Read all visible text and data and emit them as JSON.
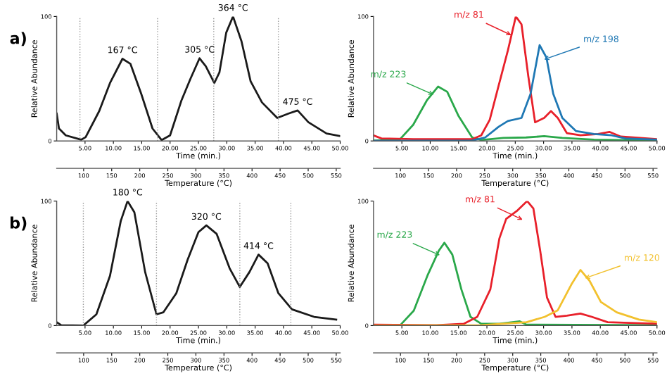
{
  "chart_data": [
    {
      "type": "line",
      "title": "a)",
      "xlabel": "Time (min.)",
      "ylabel": "Relative Abundance",
      "x2label": "Temperature (°C)",
      "xlim": [
        0,
        50
      ],
      "xticks": [
        {
          "value": 5,
          "label": "5.00"
        },
        {
          "value": 10,
          "label": "10.00"
        },
        {
          "value": 15,
          "label": "15.00"
        },
        {
          "value": 20,
          "label": "20.00"
        },
        {
          "value": 25,
          "label": "25.00"
        },
        {
          "value": 30,
          "label": "30.00"
        },
        {
          "value": 35,
          "label": "35.00"
        },
        {
          "value": 40,
          "label": "40.00"
        },
        {
          "value": 45,
          "label": "45.00"
        },
        {
          "value": 50,
          "label": "50.00"
        }
      ],
      "ylim": [
        0,
        100
      ],
      "yticks": [
        0,
        100
      ],
      "x2lim": [
        52,
        557
      ],
      "x2ticks": [
        100,
        150,
        200,
        250,
        300,
        350,
        400,
        450,
        500,
        550
      ],
      "series": [
        {
          "color": "#1a1a1a",
          "x": [
            0,
            0.4,
            1.6,
            4.3,
            5.1,
            7.5,
            9.4,
            11.6,
            13.0,
            14.9,
            16.9,
            18.5,
            20.0,
            22.0,
            23.6,
            25.2,
            26.3,
            27.8,
            28.7,
            29.9,
            31.1,
            32.6,
            34.2,
            36.2,
            38.9,
            40.9,
            42.5,
            44.4,
            47.6,
            49.9
          ],
          "values": [
            22,
            10,
            4.5,
            1,
            3,
            24,
            46.5,
            66,
            62,
            38,
            10,
            0.7,
            4.5,
            32.5,
            50,
            66.4,
            60,
            46.5,
            55,
            87,
            100,
            80,
            48,
            31,
            18.5,
            22,
            24.5,
            15,
            6,
            4
          ]
        }
      ],
      "ref_lines": [
        {
          "axis": "x",
          "value": 4.1,
          "color": "#999999",
          "line_style": "dotted"
        },
        {
          "axis": "x",
          "value": 17.8,
          "color": "#999999",
          "line_style": "dotted"
        },
        {
          "axis": "x",
          "value": 27.7,
          "color": "#999999",
          "line_style": "dotted"
        },
        {
          "axis": "x",
          "value": 39.1,
          "color": "#999999",
          "line_style": "dotted"
        }
      ],
      "annotations": [
        {
          "text": "167 °C",
          "x": 11.6,
          "y": 66
        },
        {
          "text": "305 °C",
          "x": 25.2,
          "y": 66.4
        },
        {
          "text": "364 °C",
          "x": 31.1,
          "y": 100
        },
        {
          "text": "475 °C",
          "x": 42.5,
          "y": 24.5
        }
      ],
      "grid": false,
      "legend": false,
      "line_style": "solid",
      "marker": "none"
    },
    {
      "type": "line",
      "xlabel": "Time (min.)",
      "ylabel": "Relative Abundance",
      "x2label": "Temperature (°C)",
      "xlim": [
        0,
        50
      ],
      "xticks": [
        {
          "value": 5,
          "label": "5.00"
        },
        {
          "value": 10,
          "label": "10.00"
        },
        {
          "value": 15,
          "label": "15.00"
        },
        {
          "value": 20,
          "label": "20.00"
        },
        {
          "value": 25,
          "label": "25.00"
        },
        {
          "value": 30,
          "label": "30.00"
        },
        {
          "value": 35,
          "label": "35.00"
        },
        {
          "value": 40,
          "label": "40.00"
        },
        {
          "value": 45,
          "label": "45.00"
        },
        {
          "value": 50,
          "label": "50.00"
        }
      ],
      "ylim": [
        0,
        100
      ],
      "yticks": [
        0,
        100
      ],
      "x2lim": [
        52,
        557
      ],
      "x2ticks": [
        100,
        150,
        200,
        250,
        300,
        350,
        400,
        450,
        500,
        550
      ],
      "series": [
        {
          "name": "m/z 223",
          "color": "#2aa84a",
          "x": [
            0,
            4.6,
            7.0,
            9.4,
            11.4,
            13.0,
            15.0,
            17.4,
            19.0,
            22.9,
            26.9,
            30.1,
            33.3,
            38.9,
            50
          ],
          "values": [
            0.3,
            1,
            13,
            32.5,
            43.7,
            39.5,
            20,
            2.8,
            0.7,
            2.4,
            2.8,
            3.8,
            2.4,
            1,
            0.3
          ]
        },
        {
          "name": "m/z 81",
          "color": "#e8202a",
          "x": [
            0,
            1.4,
            7,
            17.4,
            19,
            20.5,
            22.1,
            23.7,
            25.1,
            26.1,
            27.3,
            28.5,
            30.1,
            31.3,
            32.5,
            34.1,
            36.5,
            39.6,
            41.6,
            43.6,
            50
          ],
          "values": [
            4.5,
            2,
            1.4,
            1.4,
            4.5,
            17,
            45,
            72.7,
            100,
            93.7,
            52,
            15,
            18.5,
            24,
            18.5,
            6.3,
            4.5,
            5.6,
            7.3,
            3.5,
            1.4
          ]
        },
        {
          "name": "m/z 198",
          "color": "#1f78b4",
          "x": [
            0,
            17.4,
            19.7,
            22.1,
            23.7,
            26.1,
            27.7,
            29.3,
            30.5,
            31.7,
            33.3,
            35.7,
            38.9,
            42,
            44.4,
            50
          ],
          "values": [
            0,
            0.3,
            2.8,
            11.5,
            16,
            18.5,
            37.8,
            77,
            67,
            37.8,
            18.5,
            8,
            5.6,
            4.5,
            2,
            1
          ]
        }
      ],
      "grid": false,
      "legend": false,
      "line_style": "solid",
      "marker": "none"
    },
    {
      "type": "line",
      "title": "b)",
      "xlabel": "Time (min.)",
      "ylabel": "Relative Abundance",
      "x2label": "Temperature (°C)",
      "xlim": [
        0,
        50
      ],
      "xticks": [
        {
          "value": 5,
          "label": "5.00"
        },
        {
          "value": 10,
          "label": "10.00"
        },
        {
          "value": 15,
          "label": "15.00"
        },
        {
          "value": 20,
          "label": "20.00"
        },
        {
          "value": 25,
          "label": "25.00"
        },
        {
          "value": 30,
          "label": "30.00"
        },
        {
          "value": 35,
          "label": "35.00"
        },
        {
          "value": 40,
          "label": "40.00"
        },
        {
          "value": 45,
          "label": "45.00"
        },
        {
          "value": 50,
          "label": "50.00"
        }
      ],
      "ylim": [
        0,
        100
      ],
      "yticks": [
        0,
        100
      ],
      "x2lim": [
        52,
        557
      ],
      "x2ticks": [
        100,
        150,
        200,
        250,
        300,
        350,
        400,
        450,
        500,
        550
      ],
      "series": [
        {
          "color": "#1a1a1a",
          "x": [
            0,
            0.8,
            4.7,
            7.0,
            9.4,
            11.3,
            12.5,
            13.7,
            15.6,
            17.6,
            18.8,
            21.1,
            23.1,
            25.0,
            26.4,
            28.2,
            30.5,
            32.3,
            34.0,
            35.6,
            37.2,
            39.1,
            41.5,
            45.4,
            49.3
          ],
          "values": [
            2.7,
            0.3,
            0,
            9,
            40,
            84,
            100,
            91,
            43,
            9,
            10.6,
            26,
            53,
            75,
            80.5,
            73.7,
            46,
            31,
            43,
            57,
            50,
            26,
            13,
            7,
            4.8
          ]
        }
      ],
      "ref_lines": [
        {
          "axis": "x",
          "value": 4.7,
          "color": "#999999",
          "line_style": "dotted"
        },
        {
          "axis": "x",
          "value": 17.6,
          "color": "#999999",
          "line_style": "dotted"
        },
        {
          "axis": "x",
          "value": 32.3,
          "color": "#999999",
          "line_style": "dotted"
        },
        {
          "axis": "x",
          "value": 41.3,
          "color": "#999999",
          "line_style": "dotted"
        }
      ],
      "annotations": [
        {
          "text": "180 °C",
          "x": 12.5,
          "y": 100
        },
        {
          "text": "320 °C",
          "x": 26.4,
          "y": 80.5
        },
        {
          "text": "414 °C",
          "x": 35.6,
          "y": 57
        }
      ],
      "grid": false,
      "legend": false,
      "line_style": "solid",
      "marker": "none"
    },
    {
      "type": "line",
      "xlabel": "Time (min.)",
      "ylabel": "Relative Abundance",
      "x2label": "Temperature (°C)",
      "xlim": [
        0,
        50
      ],
      "xticks": [
        {
          "value": 5,
          "label": "5.00"
        },
        {
          "value": 10,
          "label": "10.00"
        },
        {
          "value": 15,
          "label": "15.00"
        },
        {
          "value": 20,
          "label": "20.00"
        },
        {
          "value": 25,
          "label": "25.00"
        },
        {
          "value": 30,
          "label": "30.00"
        },
        {
          "value": 35,
          "label": "35.00"
        },
        {
          "value": 40,
          "label": "40.00"
        },
        {
          "value": 45,
          "label": "45.00"
        },
        {
          "value": 50,
          "label": "50.00"
        }
      ],
      "ylim": [
        0,
        100
      ],
      "yticks": [
        0,
        100
      ],
      "x2lim": [
        52,
        557
      ],
      "x2ticks": [
        100,
        150,
        200,
        250,
        300,
        350,
        400,
        450,
        500,
        550
      ],
      "series": [
        {
          "name": "m/z 223",
          "color": "#2aa84a",
          "x": [
            0,
            4.8,
            7.1,
            9.5,
            11.5,
            12.5,
            13.9,
            15.5,
            17.1,
            19,
            22.2,
            25.8,
            27,
            50
          ],
          "values": [
            0.3,
            0.7,
            12,
            40,
            60,
            66.5,
            57,
            29,
            7,
            1.4,
            1.4,
            3.4,
            0.7,
            0.3
          ]
        },
        {
          "name": "m/z 81",
          "color": "#e8202a",
          "x": [
            0,
            11.1,
            15.9,
            18.3,
            20.6,
            22.2,
            23.4,
            25.4,
            27.1,
            28.2,
            29.4,
            30.6,
            32.1,
            34.1,
            36.5,
            38.5,
            41.3,
            50
          ],
          "values": [
            0.7,
            0.3,
            1.4,
            7,
            29,
            70,
            85.7,
            92.5,
            100,
            94,
            60,
            22.5,
            7,
            8,
            9.6,
            7,
            2.7,
            1.4
          ]
        },
        {
          "name": "m/z 120",
          "color": "#f2c12e",
          "x": [
            0,
            19,
            27,
            30.2,
            32.5,
            34.9,
            36.5,
            38.1,
            40.1,
            42.9,
            46.8,
            50
          ],
          "values": [
            0,
            0.3,
            2.7,
            7,
            12.3,
            33,
            44.7,
            36,
            19,
            10.6,
            4.8,
            2.7
          ]
        }
      ],
      "grid": false,
      "legend": false,
      "line_style": "solid",
      "marker": "none"
    }
  ]
}
